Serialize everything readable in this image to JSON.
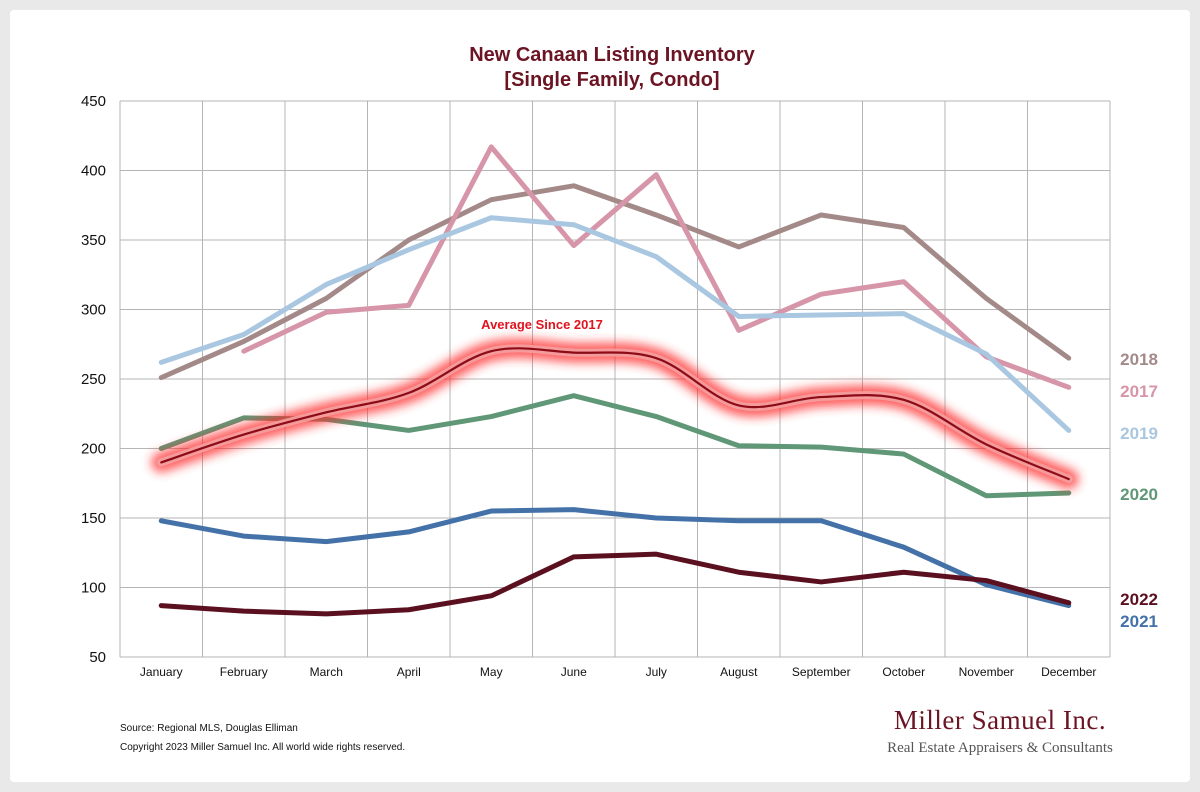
{
  "chart_data": {
    "type": "line",
    "title": "New Canaan Listing Inventory",
    "subtitle": "[Single Family, Condo]",
    "categories": [
      "January",
      "February",
      "March",
      "April",
      "May",
      "June",
      "July",
      "August",
      "September",
      "October",
      "November",
      "December"
    ],
    "ylim": [
      50,
      450
    ],
    "yticks": [
      50,
      100,
      150,
      200,
      250,
      300,
      350,
      400,
      450
    ],
    "grid": true,
    "series": [
      {
        "name": "2018",
        "color": "#a38a89",
        "values": [
          251,
          277,
          308,
          350,
          379,
          389,
          368,
          345,
          368,
          359,
          308,
          265
        ]
      },
      {
        "name": "2017",
        "color": "#d695a8",
        "values": [
          null,
          270,
          298,
          303,
          417,
          346,
          397,
          285,
          311,
          320,
          266,
          244
        ]
      },
      {
        "name": "2019",
        "color": "#a9c7e0",
        "values": [
          262,
          282,
          318,
          343,
          366,
          361,
          338,
          295,
          296,
          297,
          268,
          213
        ]
      },
      {
        "name": "2020",
        "color": "#5f9777",
        "values": [
          200,
          222,
          221,
          213,
          223,
          238,
          223,
          202,
          201,
          196,
          166,
          168
        ]
      },
      {
        "name": "2021",
        "color": "#4472a8",
        "values": [
          148,
          137,
          133,
          140,
          155,
          156,
          150,
          148,
          148,
          129,
          102,
          87
        ]
      },
      {
        "name": "2022",
        "color": "#5b101f",
        "values": [
          87,
          83,
          81,
          84,
          94,
          122,
          124,
          111,
          104,
          111,
          105,
          89
        ]
      },
      {
        "name": "Average  Since 2017",
        "color": "#e0141e",
        "values": [
          190,
          210,
          226,
          240,
          270,
          269,
          265,
          231,
          237,
          235,
          203,
          178
        ]
      }
    ]
  },
  "footer": {
    "source": "Source: Regional MLS, Douglas Elliman",
    "copyright": "Copyright 2023 Miller Samuel Inc.  All world wide rights reserved.",
    "brand_name": "Miller Samuel Inc.",
    "brand_tagline": "Real Estate Appraisers & Consultants"
  }
}
